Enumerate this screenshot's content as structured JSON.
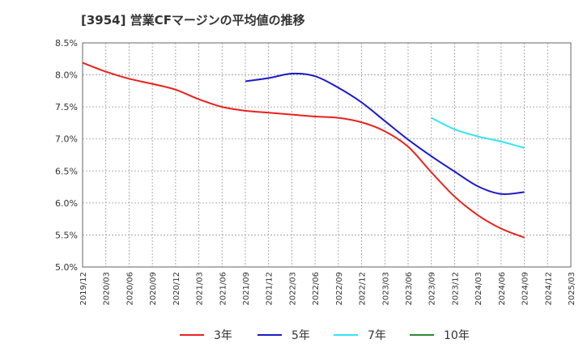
{
  "chart_data": {
    "type": "line",
    "title": "[3954]  営業CFマージンの平均値の推移",
    "xlabel": "",
    "ylabel": "",
    "x_ticks": [
      "2019/12",
      "2020/03",
      "2020/06",
      "2020/09",
      "2020/12",
      "2021/03",
      "2021/06",
      "2021/09",
      "2021/12",
      "2022/03",
      "2022/06",
      "2022/09",
      "2022/12",
      "2023/03",
      "2023/06",
      "2023/09",
      "2023/12",
      "2024/03",
      "2024/06",
      "2024/09",
      "2024/12",
      "2025/03"
    ],
    "y_ticks": [
      "5.0%",
      "5.5%",
      "6.0%",
      "6.5%",
      "7.0%",
      "7.5%",
      "8.0%",
      "8.5%"
    ],
    "ylim": [
      5.0,
      8.5
    ],
    "grid": true,
    "legend_position": "bottom",
    "series": [
      {
        "name": "3年",
        "color": "#e8211c",
        "x": [
          "2019/12",
          "2020/03",
          "2020/06",
          "2020/09",
          "2020/12",
          "2021/03",
          "2021/06",
          "2021/09",
          "2021/12",
          "2022/03",
          "2022/06",
          "2022/09",
          "2022/12",
          "2023/03",
          "2023/06",
          "2023/09",
          "2023/12",
          "2024/03",
          "2024/06",
          "2024/09"
        ],
        "values": [
          8.19,
          8.05,
          7.94,
          7.86,
          7.77,
          7.62,
          7.5,
          7.44,
          7.41,
          7.38,
          7.35,
          7.33,
          7.26,
          7.12,
          6.88,
          6.48,
          6.1,
          5.81,
          5.6,
          5.46
        ]
      },
      {
        "name": "5年",
        "color": "#1a1ac8",
        "x": [
          "2021/09",
          "2021/12",
          "2022/03",
          "2022/06",
          "2022/09",
          "2022/12",
          "2023/03",
          "2023/06",
          "2023/09",
          "2023/12",
          "2024/03",
          "2024/06",
          "2024/09"
        ],
        "values": [
          7.9,
          7.95,
          8.02,
          7.98,
          7.8,
          7.57,
          7.28,
          6.99,
          6.73,
          6.49,
          6.26,
          6.14,
          6.17
        ]
      },
      {
        "name": "7年",
        "color": "#33e6f0",
        "x": [
          "2023/09",
          "2023/12",
          "2024/03",
          "2024/06",
          "2024/09"
        ],
        "values": [
          7.33,
          7.15,
          7.04,
          6.96,
          6.86
        ]
      },
      {
        "name": "10年",
        "color": "#2e8b2e",
        "x": [],
        "values": []
      }
    ]
  }
}
